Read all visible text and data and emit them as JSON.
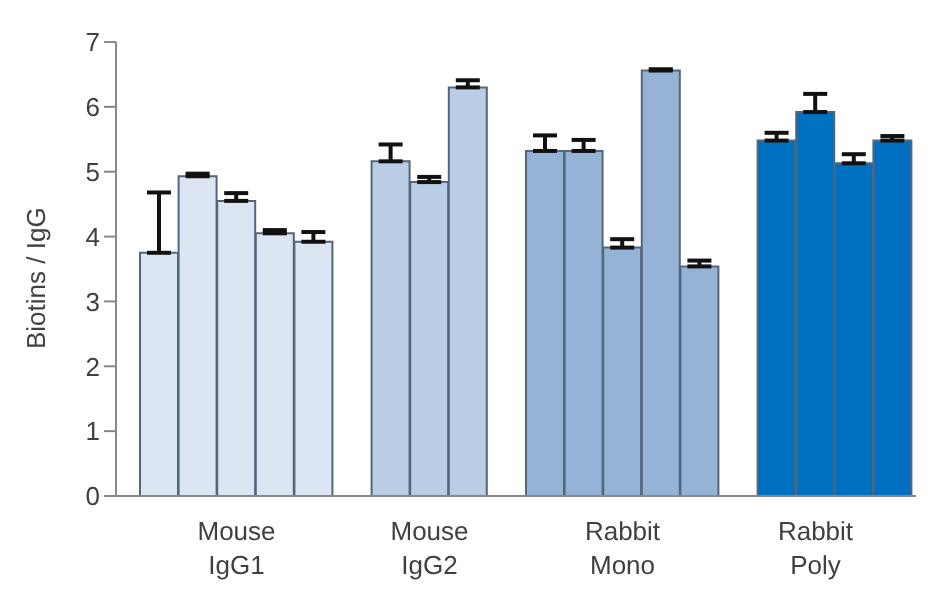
{
  "chart_data": {
    "type": "bar",
    "ylabel": "Biotins / IgG",
    "categories": [
      null,
      null,
      "Mouse IgG1",
      null,
      null,
      null,
      null,
      "Mouse IgG2",
      null,
      null,
      null,
      null,
      "Rabbit Mono",
      null,
      null,
      null,
      null,
      "Rabbit Poly",
      null,
      null
    ],
    "values": [
      3.75,
      4.93,
      4.55,
      4.05,
      3.92,
      null,
      5.16,
      4.84,
      6.3,
      null,
      5.32,
      5.32,
      3.83,
      6.56,
      3.54,
      null,
      5.48,
      5.92,
      5.13,
      5.48
    ],
    "errors": [
      [
        3.75,
        4.68
      ],
      [
        4.93,
        4.97
      ],
      [
        4.55,
        4.67
      ],
      [
        4.05,
        4.1
      ],
      [
        3.92,
        4.07
      ],
      null,
      [
        5.16,
        5.42
      ],
      [
        4.84,
        4.92
      ],
      [
        6.3,
        6.41
      ],
      null,
      [
        5.32,
        5.56
      ],
      [
        5.32,
        5.49
      ],
      [
        3.83,
        3.96
      ],
      [
        6.56,
        6.58
      ],
      [
        3.54,
        3.63
      ],
      null,
      [
        5.48,
        5.6
      ],
      [
        5.92,
        6.2
      ],
      [
        5.13,
        5.27
      ],
      [
        5.48,
        5.55
      ]
    ],
    "colors": [
      "#dce6f2",
      "#dce6f2",
      "#dce6f2",
      "#dce6f2",
      "#dce6f2",
      null,
      "#b9cde5",
      "#b9cde5",
      "#b9cde5",
      null,
      "#95b3d7",
      "#95b3d7",
      "#95b3d7",
      "#95b3d7",
      "#95b3d7",
      null,
      "#0070c0",
      "#0070c0",
      "#0070c0",
      "#0070c0"
    ],
    "ylim": [
      0,
      7
    ],
    "yticks": [
      0,
      1,
      2,
      3,
      4,
      5,
      6,
      7
    ],
    "grid": false,
    "legend": false
  }
}
